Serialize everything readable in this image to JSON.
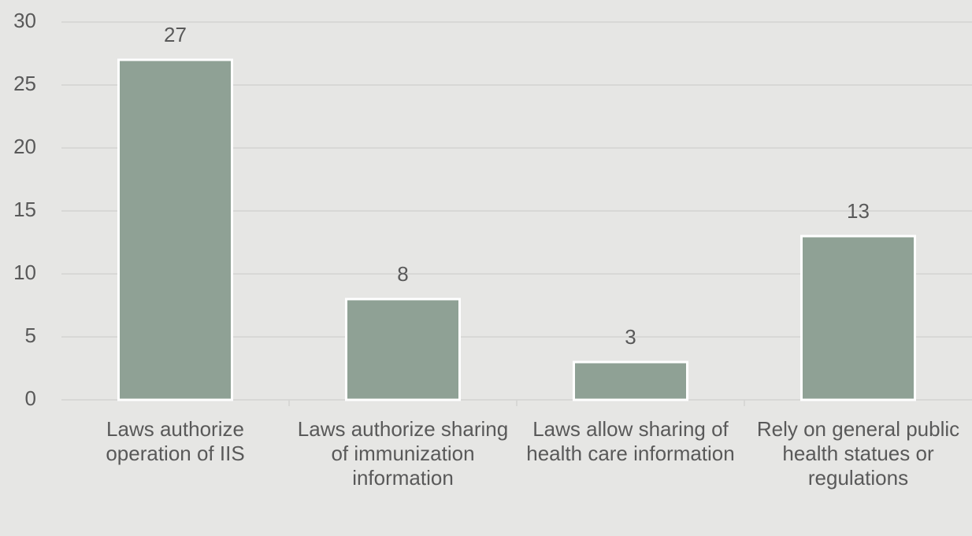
{
  "chart_data": {
    "type": "bar",
    "categories": [
      "Laws authorize operation of IIS",
      "Laws authorize sharing of immunization information",
      "Laws allow sharing of health care information",
      "Rely on general public health statues or regulations"
    ],
    "values": [
      27,
      8,
      3,
      13
    ],
    "color": "#8fa195",
    "ylim": [
      0,
      30
    ],
    "yticks": [
      0,
      5,
      10,
      15,
      20,
      25,
      30
    ],
    "grid": true
  }
}
